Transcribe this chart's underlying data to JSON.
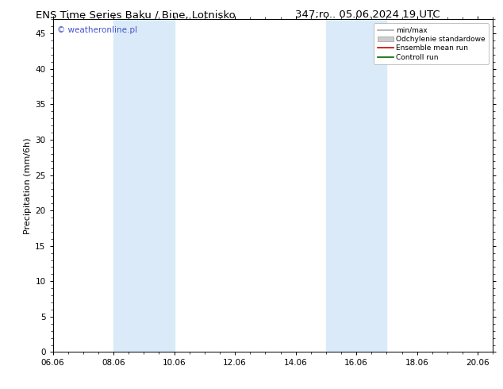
{
  "title_left": "ENS Time Series Baku / Bine, Lotnisko",
  "title_right": "347;ro.. 05.06.2024 19 UTC",
  "ylabel": "Precipitation (mm/6h)",
  "watermark": "© weatheronline.pl",
  "xmin": 0,
  "xmax": 14.5,
  "ymin": 0,
  "ymax": 47,
  "yticks": [
    0,
    5,
    10,
    15,
    20,
    25,
    30,
    35,
    40,
    45
  ],
  "xtick_labels": [
    "06.06",
    "08.06",
    "10.06",
    "12.06",
    "14.06",
    "16.06",
    "18.06",
    "20.06"
  ],
  "xtick_positions": [
    0,
    2,
    4,
    6,
    8,
    10,
    12,
    14
  ],
  "shaded_bands": [
    {
      "x_start": 2,
      "x_end": 4
    },
    {
      "x_start": 9,
      "x_end": 11
    }
  ],
  "band_color": "#daeaf8",
  "legend_items": [
    {
      "label": "min/max",
      "color": "#aaaaaa",
      "lw": 1.2,
      "style": "solid",
      "type": "line"
    },
    {
      "label": "Odchylenie standardowe",
      "color": "#cccccc",
      "lw": 6,
      "style": "solid",
      "type": "patch"
    },
    {
      "label": "Ensemble mean run",
      "color": "#cc0000",
      "lw": 1.2,
      "style": "solid",
      "type": "line"
    },
    {
      "label": "Controll run",
      "color": "#006600",
      "lw": 1.2,
      "style": "solid",
      "type": "line"
    }
  ],
  "background_color": "#ffffff",
  "plot_bg_color": "#ffffff",
  "title_fontsize": 9.5,
  "axis_fontsize": 8,
  "tick_fontsize": 7.5,
  "watermark_color": "#4455cc",
  "watermark_fontsize": 7.5
}
